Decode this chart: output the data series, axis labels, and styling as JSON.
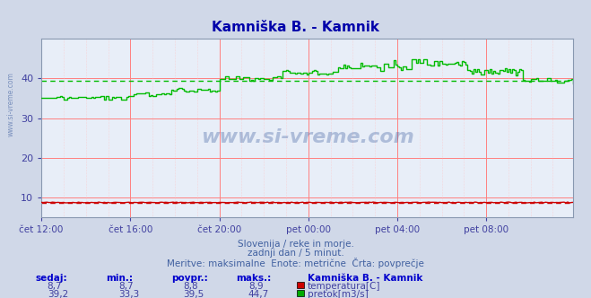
{
  "title": "Kamniška B. - Kamnik",
  "title_color": "#0000aa",
  "bg_color": "#d0d8e8",
  "plot_bg_color": "#e8eef8",
  "grid_color_major": "#ff8080",
  "grid_color_minor": "#ffc0c0",
  "xlabel_color": "#4040a0",
  "ylabel_color": "#4040a0",
  "tick_color": "#4040a0",
  "watermark_color": "#4060a0",
  "x_tick_labels": [
    "čet 12:00",
    "čet 16:00",
    "čet 20:00",
    "pet 00:00",
    "pet 04:00",
    "pet 08:00"
  ],
  "x_tick_positions": [
    0,
    48,
    96,
    144,
    192,
    240
  ],
  "y_ticks": [
    10,
    20,
    30,
    40
  ],
  "ylim": [
    5,
    50
  ],
  "xlim": [
    0,
    287
  ],
  "flow_avg_line": 39.5,
  "temp_avg_line": 8.8,
  "subtitle1": "Slovenija / reke in morje.",
  "subtitle2": "zadnji dan / 5 minut.",
  "subtitle3": "Meritve: maksimalne  Enote: metrične  Črta: povprečje",
  "legend_title": "Kamniška B. - Kamnik",
  "legend_items": [
    {
      "label": "temperatura[C]",
      "color": "#cc0000"
    },
    {
      "label": "pretok[m3/s]",
      "color": "#00aa00"
    }
  ],
  "table_headers": [
    "sedaj:",
    "min.:",
    "povpr.:",
    "maks.:"
  ],
  "table_row1": [
    "8,7",
    "8,7",
    "8,8",
    "8,9"
  ],
  "table_row2": [
    "39,2",
    "33,3",
    "39,5",
    "44,7"
  ],
  "flow_color": "#00bb00",
  "temp_color": "#cc0000"
}
